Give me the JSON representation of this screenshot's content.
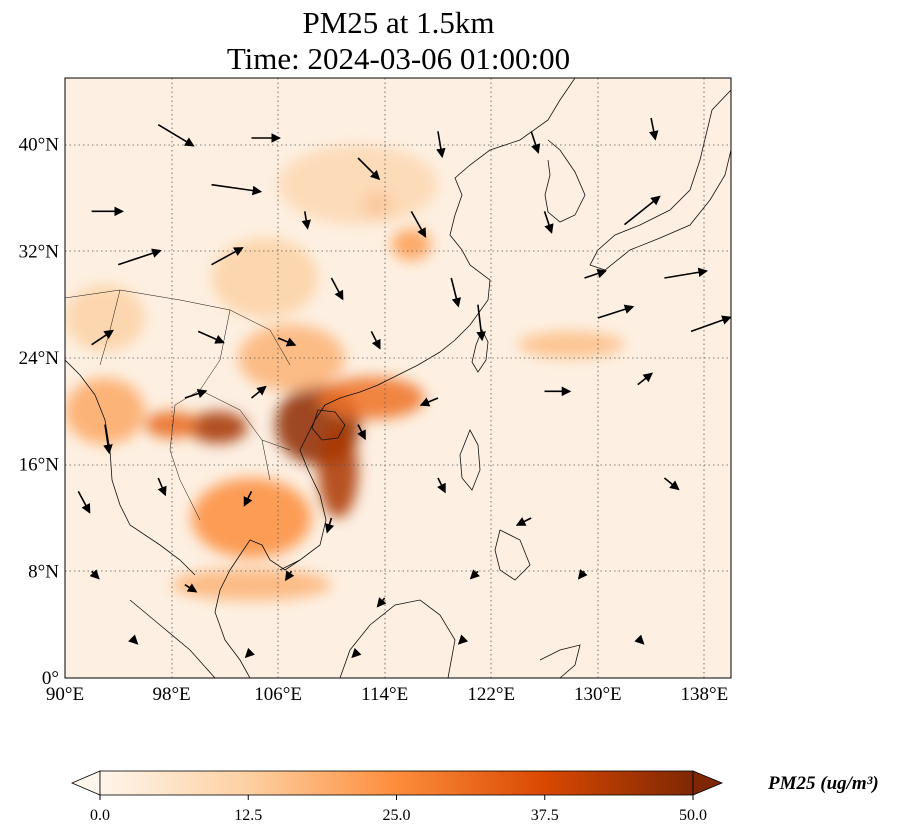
{
  "title": {
    "line1": "PM25 at 1.5km",
    "line2": "Time: 2024-03-06 01:00:00"
  },
  "map": {
    "lon_range": [
      90,
      140
    ],
    "lat_range": [
      0,
      45
    ],
    "x_ticks": [
      {
        "value": 90,
        "label": "90°E"
      },
      {
        "value": 98,
        "label": "98°E"
      },
      {
        "value": 106,
        "label": "106°E"
      },
      {
        "value": 114,
        "label": "114°E"
      },
      {
        "value": 122,
        "label": "122°E"
      },
      {
        "value": 130,
        "label": "130°E"
      },
      {
        "value": 138,
        "label": "138°E"
      }
    ],
    "y_ticks": [
      {
        "value": 0,
        "label": "0°"
      },
      {
        "value": 8,
        "label": "8°N"
      },
      {
        "value": 16,
        "label": "16°N"
      },
      {
        "value": 24,
        "label": "24°N"
      },
      {
        "value": 32,
        "label": "32°N"
      },
      {
        "value": 40,
        "label": "40°N"
      }
    ],
    "gridlines": "dotted",
    "colormap": [
      "#fff5eb",
      "#fdd0a2",
      "#fd8d3c",
      "#d94801",
      "#7f2704"
    ],
    "hotspots": [
      {
        "lon": 109,
        "lat": 19,
        "rlon": 3.2,
        "rlat": 3.0,
        "value": 48
      },
      {
        "lon": 110.5,
        "lat": 15.5,
        "rlon": 1.5,
        "rlat": 3.5,
        "value": 44
      },
      {
        "lon": 101.5,
        "lat": 18.8,
        "rlon": 2.2,
        "rlat": 1.2,
        "value": 45
      },
      {
        "lon": 98,
        "lat": 19,
        "rlon": 2.0,
        "rlat": 1.0,
        "value": 32
      },
      {
        "lon": 113,
        "lat": 21,
        "rlon": 4.0,
        "rlat": 1.6,
        "value": 30
      },
      {
        "lon": 104,
        "lat": 12,
        "rlon": 4.5,
        "rlat": 3.0,
        "value": 25
      },
      {
        "lon": 104,
        "lat": 7,
        "rlon": 6.0,
        "rlat": 1.2,
        "value": 18
      },
      {
        "lon": 93,
        "lat": 20,
        "rlon": 3.0,
        "rlat": 2.5,
        "value": 20
      },
      {
        "lon": 107,
        "lat": 24,
        "rlon": 4.0,
        "rlat": 2.5,
        "value": 18
      },
      {
        "lon": 113.5,
        "lat": 35.5,
        "rlon": 1.2,
        "rlat": 1.0,
        "value": 30
      },
      {
        "lon": 116,
        "lat": 32.5,
        "rlon": 1.5,
        "rlat": 1.2,
        "value": 22
      },
      {
        "lon": 128,
        "lat": 25,
        "rlon": 4.0,
        "rlat": 1.0,
        "value": 16
      },
      {
        "lon": 105,
        "lat": 30,
        "rlon": 4.0,
        "rlat": 3.0,
        "value": 12
      },
      {
        "lon": 112,
        "lat": 37,
        "rlon": 6.0,
        "rlat": 3.0,
        "value": 10
      },
      {
        "lon": 93,
        "lat": 27,
        "rlon": 3.0,
        "rlat": 2.5,
        "value": 12
      }
    ],
    "wind_vectors": [
      {
        "lon": 97,
        "lat": 41.5,
        "u": 2.5,
        "v": -1.5
      },
      {
        "lon": 104,
        "lat": 40.5,
        "u": 2.0,
        "v": 0.0
      },
      {
        "lon": 112,
        "lat": 39,
        "u": 1.5,
        "v": -1.5
      },
      {
        "lon": 118,
        "lat": 41,
        "u": 0.3,
        "v": -1.8
      },
      {
        "lon": 125,
        "lat": 41,
        "u": 0.5,
        "v": -1.5
      },
      {
        "lon": 134,
        "lat": 42,
        "u": 0.3,
        "v": -1.5
      },
      {
        "lon": 92,
        "lat": 35,
        "u": 2.2,
        "v": 0.0
      },
      {
        "lon": 101,
        "lat": 37,
        "u": 3.5,
        "v": -0.5
      },
      {
        "lon": 108,
        "lat": 35,
        "u": 0.2,
        "v": -1.2
      },
      {
        "lon": 116,
        "lat": 35,
        "u": 1.0,
        "v": -1.8
      },
      {
        "lon": 126,
        "lat": 35,
        "u": 0.5,
        "v": -1.5
      },
      {
        "lon": 132,
        "lat": 34,
        "u": 2.5,
        "v": 2.0
      },
      {
        "lon": 94,
        "lat": 31,
        "u": 3.0,
        "v": 1.0
      },
      {
        "lon": 101,
        "lat": 31,
        "u": 2.2,
        "v": 1.2
      },
      {
        "lon": 110,
        "lat": 30,
        "u": 0.8,
        "v": -1.5
      },
      {
        "lon": 119,
        "lat": 30,
        "u": 0.5,
        "v": -2.0
      },
      {
        "lon": 129,
        "lat": 30,
        "u": 1.5,
        "v": 0.5
      },
      {
        "lon": 135,
        "lat": 30,
        "u": 3.0,
        "v": 0.5
      },
      {
        "lon": 92,
        "lat": 25,
        "u": 1.5,
        "v": 1.0
      },
      {
        "lon": 100,
        "lat": 26,
        "u": 1.8,
        "v": -0.8
      },
      {
        "lon": 106,
        "lat": 25.5,
        "u": 1.2,
        "v": -0.5
      },
      {
        "lon": 113,
        "lat": 26,
        "u": 0.6,
        "v": -1.2
      },
      {
        "lon": 121,
        "lat": 28,
        "u": 0.3,
        "v": -2.5
      },
      {
        "lon": 130,
        "lat": 27,
        "u": 2.5,
        "v": 0.8
      },
      {
        "lon": 137,
        "lat": 26,
        "u": 2.8,
        "v": 1.0
      },
      {
        "lon": 93,
        "lat": 19,
        "u": 0.3,
        "v": -2.0
      },
      {
        "lon": 99,
        "lat": 21,
        "u": 1.5,
        "v": 0.5
      },
      {
        "lon": 104,
        "lat": 21,
        "u": 1.0,
        "v": 0.8
      },
      {
        "lon": 112,
        "lat": 19,
        "u": 0.5,
        "v": -1.0
      },
      {
        "lon": 118,
        "lat": 21,
        "u": -1.2,
        "v": -0.5
      },
      {
        "lon": 126,
        "lat": 21.5,
        "u": 1.8,
        "v": 0.0
      },
      {
        "lon": 133,
        "lat": 22,
        "u": 1.0,
        "v": 0.8
      },
      {
        "lon": 91,
        "lat": 14,
        "u": 0.8,
        "v": -1.5
      },
      {
        "lon": 97,
        "lat": 15,
        "u": 0.5,
        "v": -1.2
      },
      {
        "lon": 104,
        "lat": 14,
        "u": -0.5,
        "v": -1.0
      },
      {
        "lon": 110,
        "lat": 12,
        "u": -0.3,
        "v": -1.0
      },
      {
        "lon": 118,
        "lat": 15,
        "u": 0.5,
        "v": -1.0
      },
      {
        "lon": 125,
        "lat": 12,
        "u": -1.0,
        "v": -0.5
      },
      {
        "lon": 135,
        "lat": 15,
        "u": 1.0,
        "v": -0.8
      },
      {
        "lon": 92,
        "lat": 8,
        "u": 0.5,
        "v": -0.5
      },
      {
        "lon": 99,
        "lat": 7,
        "u": 0.8,
        "v": -0.5
      },
      {
        "lon": 107,
        "lat": 8,
        "u": -0.4,
        "v": -0.6
      },
      {
        "lon": 114,
        "lat": 6,
        "u": -0.5,
        "v": -0.6
      },
      {
        "lon": 121,
        "lat": 8,
        "u": -0.5,
        "v": -0.5
      },
      {
        "lon": 129,
        "lat": 8,
        "u": -0.4,
        "v": -0.5
      },
      {
        "lon": 95,
        "lat": 3,
        "u": 0.4,
        "v": -0.4
      },
      {
        "lon": 104,
        "lat": 2,
        "u": -0.4,
        "v": -0.4
      },
      {
        "lon": 112,
        "lat": 2,
        "u": -0.4,
        "v": -0.4
      },
      {
        "lon": 120,
        "lat": 3,
        "u": -0.4,
        "v": -0.4
      },
      {
        "lon": 133,
        "lat": 3,
        "u": 0.4,
        "v": -0.4
      }
    ]
  },
  "colorbar": {
    "min": 0,
    "max": 50,
    "ticks": [
      "0.0",
      "12.5",
      "25.0",
      "37.5",
      "50.0"
    ],
    "label": "PM25 (ug/m³)"
  }
}
